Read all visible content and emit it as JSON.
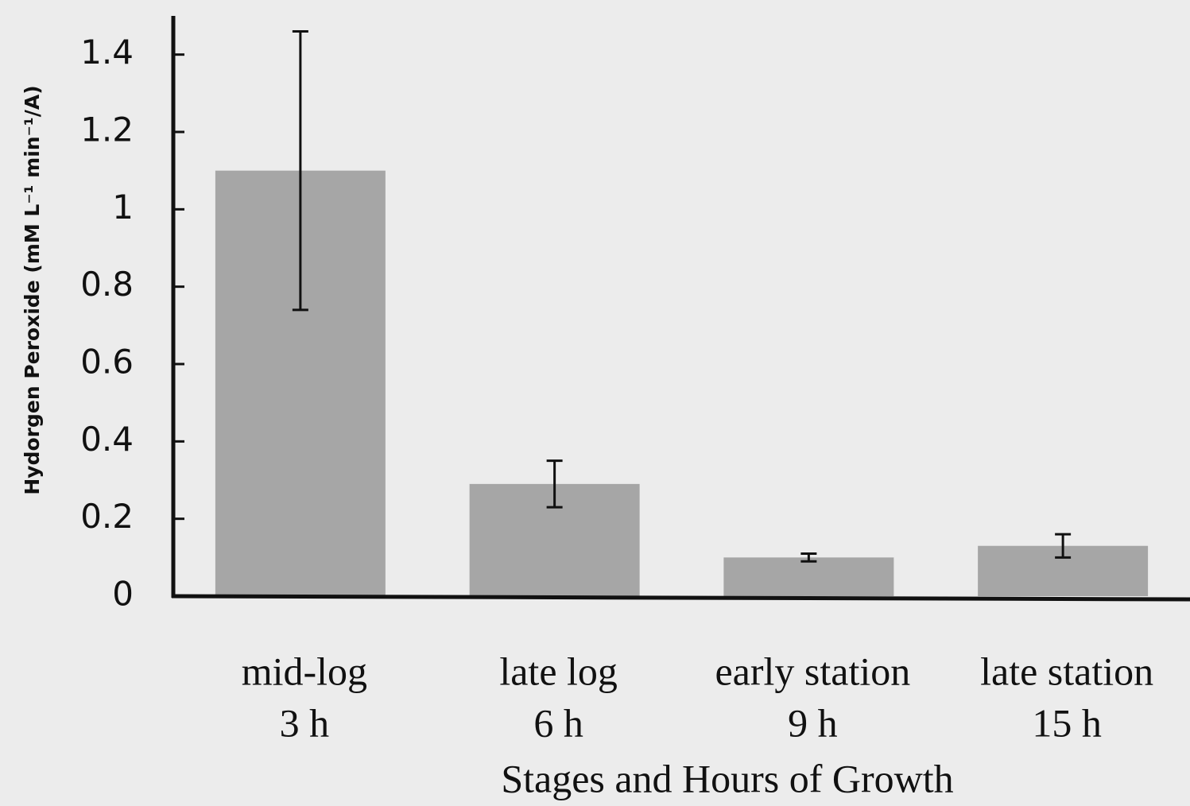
{
  "chart_data": {
    "type": "bar",
    "y_label": "Hydorgen Peroxide (mM L⁻¹ min⁻¹/A)",
    "x_label": "Stages and Hours of Growth",
    "categories": [
      [
        "mid-log",
        "3 h"
      ],
      [
        "late log",
        "6 h"
      ],
      [
        "early station",
        "9 h"
      ],
      [
        "late station",
        "15 h"
      ]
    ],
    "values": [
      1.1,
      0.29,
      0.1,
      0.13
    ],
    "errors": [
      0.36,
      0.06,
      0.01,
      0.03
    ],
    "color": "#a6a6a6",
    "ylim": [
      0,
      1.5
    ],
    "yticks": [
      0,
      0.2,
      0.4,
      0.6,
      0.8,
      1,
      1.2,
      1.4
    ],
    "grid": false
  }
}
